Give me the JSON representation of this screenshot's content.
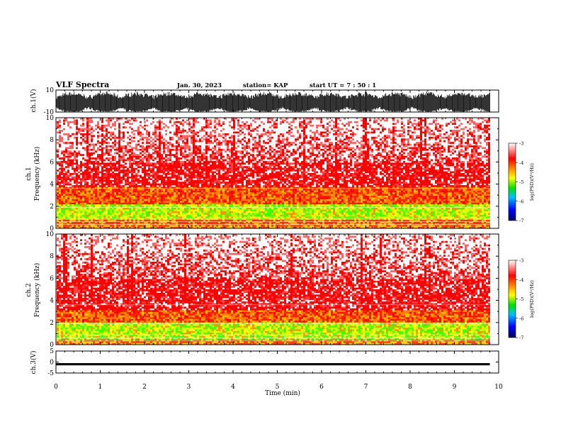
{
  "header": {
    "title": "VLF Spectra",
    "date": "Jan. 30, 2023",
    "station": "station= KAP",
    "start_ut": "start  UT  =   7 : 50 : 1"
  },
  "chart_data": [
    {
      "name": "ch1-waveform",
      "type": "line",
      "ylabel": "ch.1(V)",
      "ylim": [
        -10,
        10
      ],
      "yticks": [
        "10",
        "-10"
      ],
      "xlim": [
        0,
        10
      ],
      "data_end_min": 9.8
    },
    {
      "name": "ch1-spectrogram",
      "type": "heatmap",
      "ylabel": "ch.1\nFrequency  (kHz)",
      "ylim": [
        0,
        10
      ],
      "yticks": [
        "0",
        "2",
        "4",
        "6",
        "8",
        "10"
      ],
      "xlim": [
        0,
        10
      ],
      "data_end_min": 9.8,
      "band_kHz": {
        "green_yellow": [
          0.8,
          2.2
        ],
        "orange": [
          2.2,
          3.8
        ],
        "red": [
          3.8,
          6.0
        ],
        "sparse_red": [
          6.0,
          10.0
        ]
      }
    },
    {
      "name": "ch2-spectrogram",
      "type": "heatmap",
      "ylabel": "ch.2\nFrequency  (kHz)",
      "ylim": [
        0,
        10
      ],
      "yticks": [
        "0",
        "2",
        "4",
        "6",
        "8",
        "10"
      ],
      "xlim": [
        0,
        10
      ],
      "data_end_min": 9.8,
      "band_kHz": {
        "green_yellow": [
          0.5,
          2.0
        ],
        "orange": [
          2.0,
          3.2
        ],
        "red": [
          3.2,
          6.0
        ],
        "sparse_red": [
          6.0,
          10.0
        ]
      }
    },
    {
      "name": "ch3-waveform",
      "type": "line",
      "ylabel": "ch.3(V)",
      "ylim": [
        -5,
        5
      ],
      "yticks": [
        "5",
        "0",
        "-5"
      ],
      "xlim": [
        0,
        10
      ],
      "data_end_min": 9.8,
      "level_V": -1
    }
  ],
  "xaxis": {
    "label": "Time  (min)",
    "ticks": [
      "0",
      "1",
      "2",
      "3",
      "4",
      "5",
      "6",
      "7",
      "8",
      "9",
      "10"
    ]
  },
  "colorbar": {
    "label": "log(PSD)(V²/Hz)",
    "ticks": [
      "-3",
      "-4",
      "-5",
      "-6",
      "-7"
    ],
    "range": [
      -7,
      -3
    ],
    "colors": [
      "#000080",
      "#0000ff",
      "#00e000",
      "#ffff00",
      "#ff8000",
      "#ff0000",
      "#ffffff"
    ]
  }
}
